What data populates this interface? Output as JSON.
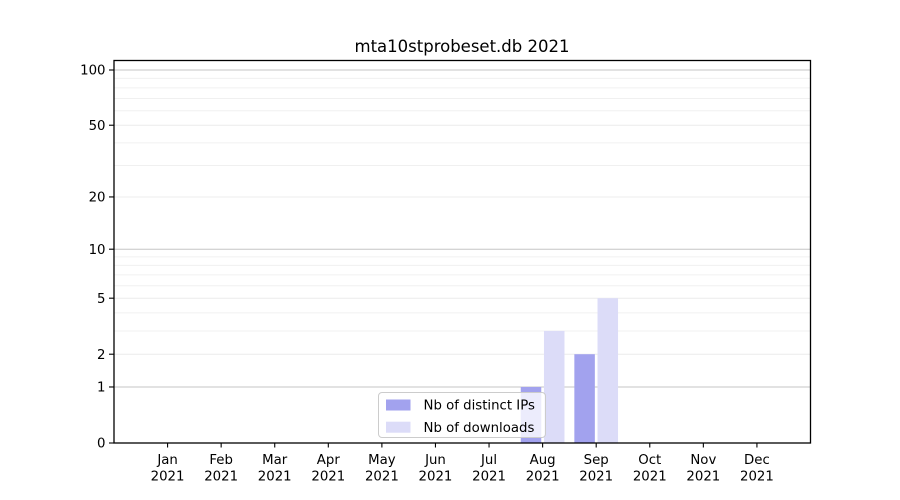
{
  "chart_data": {
    "type": "bar",
    "title": "mta10stprobeset.db 2021",
    "months": [
      "Jan",
      "Feb",
      "Mar",
      "Apr",
      "May",
      "Jun",
      "Jul",
      "Aug",
      "Sep",
      "Oct",
      "Nov",
      "Dec"
    ],
    "year_label": "2021",
    "series": [
      {
        "name": "Nb of distinct IPs",
        "color": "#a2a2ee",
        "values": [
          0,
          0,
          0,
          0,
          0,
          0,
          0,
          1,
          2,
          0,
          0,
          0
        ]
      },
      {
        "name": "Nb of downloads",
        "color": "#dcdcf8",
        "values": [
          0,
          0,
          0,
          0,
          0,
          0,
          0,
          3,
          5,
          0,
          0,
          0
        ]
      }
    ],
    "yscale": "log1p",
    "ylim": [
      0,
      112
    ],
    "yticks": [
      0,
      1,
      2,
      5,
      10,
      20,
      50,
      100
    ],
    "major_grid_values": [
      1,
      10,
      100
    ],
    "minor_gridlines": [
      3,
      4,
      6,
      7,
      8,
      9,
      30,
      40,
      60,
      70,
      80,
      90
    ],
    "grid": true,
    "legend_position": "lower-center",
    "colors": {
      "major_grid": "#c6c6c6",
      "labeled_minor_grid": "#ececec",
      "minor_grid": "#f0f0f0",
      "axis": "#000000",
      "legend_border": "#cccccc",
      "background": "#ffffff"
    }
  }
}
